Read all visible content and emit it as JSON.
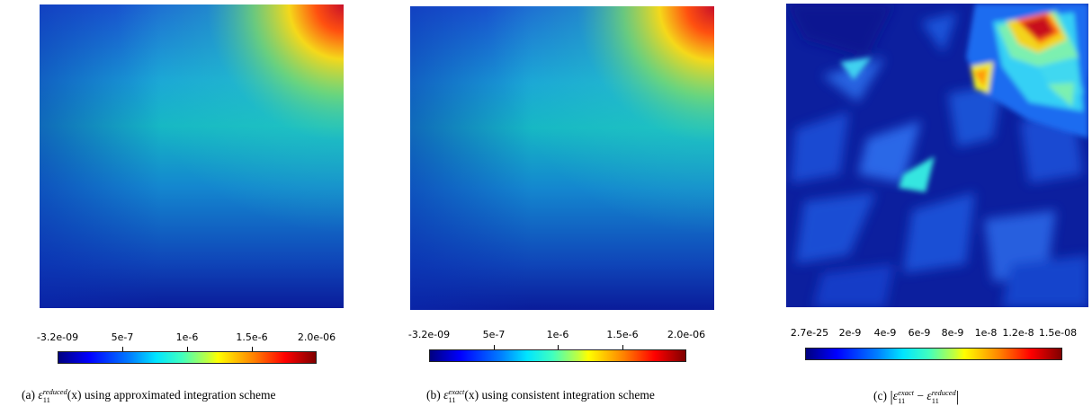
{
  "panels": [
    {
      "colorbar_ticks": [
        "-3.2e-09",
        "5e-7",
        "1e-6",
        "1.5e-6",
        "2.0e-06"
      ],
      "caption": {
        "prefix": "(a)",
        "symbol": "ε",
        "superscript": "reduced",
        "subscript": "11",
        "argument": "(x)",
        "suffix": "using approximated integration scheme"
      }
    },
    {
      "colorbar_ticks": [
        "-3.2e-09",
        "5e-7",
        "1e-6",
        "1.5e-6",
        "2.0e-06"
      ],
      "caption": {
        "prefix": "(b)",
        "symbol": "ε",
        "superscript": "exact",
        "subscript": "11",
        "argument": "(x)",
        "suffix": "using consistent integration scheme"
      }
    },
    {
      "colorbar_ticks": [
        "2.7e-25",
        "2e-9",
        "4e-9",
        "6e-9",
        "8e-9",
        "1e-8",
        "1.2e-8",
        "1.5e-08"
      ],
      "caption": {
        "prefix": "(c)",
        "symbol": "ε",
        "superscript_1": "exact",
        "superscript_2": "reduced",
        "subscript": "11",
        "operator": "−"
      }
    }
  ],
  "colormap": "jet"
}
